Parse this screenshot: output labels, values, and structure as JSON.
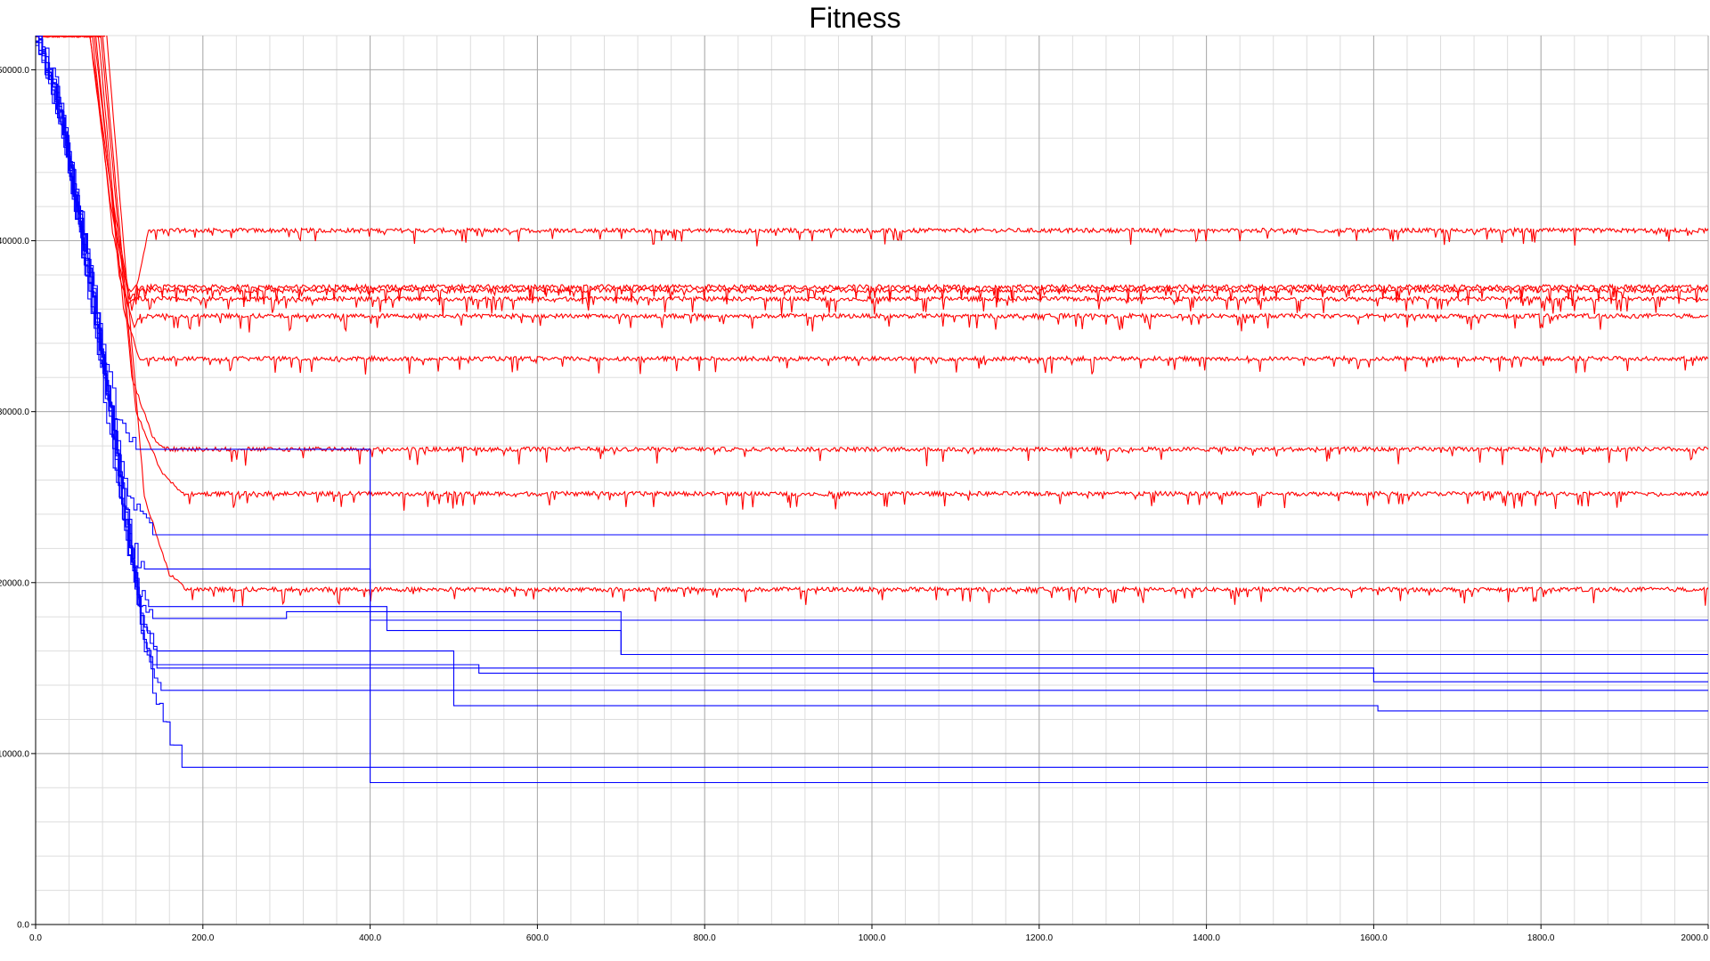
{
  "chart_data": {
    "type": "line",
    "title": "Fitness",
    "xlabel": "",
    "ylabel": "",
    "xlim": [
      0,
      2000
    ],
    "ylim": [
      0,
      52000
    ],
    "x_ticks": [
      "0.0",
      "200.0",
      "400.0",
      "600.0",
      "800.0",
      "1000.0",
      "1200.0",
      "1400.0",
      "1600.0",
      "1800.0",
      "2000.0"
    ],
    "y_ticks": [
      "0.0",
      "10000.0",
      "20000.0",
      "30000.0",
      "40000.0",
      "50000.0"
    ],
    "grid": true,
    "colors": {
      "red": "#ff0000",
      "blue": "#0000ff",
      "grid_major": "#aaaaaa",
      "grid_minor": "#dddddd"
    },
    "series": [
      {
        "color": "red",
        "x": [
          0,
          65,
          90,
          115,
          135,
          2000
        ],
        "y": [
          52000,
          52000,
          43000,
          36000,
          40600,
          40600
        ]
      },
      {
        "color": "red",
        "x": [
          0,
          65,
          90,
          110,
          120,
          2000
        ],
        "y": [
          52000,
          52000,
          42000,
          37000,
          37300,
          37300
        ]
      },
      {
        "color": "red",
        "x": [
          0,
          70,
          95,
          112,
          120,
          2000
        ],
        "y": [
          52000,
          52000,
          41000,
          36500,
          37100,
          37100
        ]
      },
      {
        "color": "red",
        "x": [
          0,
          68,
          92,
          110,
          118,
          2000
        ],
        "y": [
          52000,
          52000,
          40500,
          36300,
          36600,
          36600
        ]
      },
      {
        "color": "red",
        "x": [
          0,
          72,
          100,
          118,
          125,
          2000
        ],
        "y": [
          52000,
          52000,
          38000,
          35000,
          35600,
          35600
        ]
      },
      {
        "color": "red",
        "x": [
          0,
          75,
          105,
          125,
          135,
          2000
        ],
        "y": [
          52000,
          52000,
          36000,
          33000,
          33100,
          33100
        ]
      },
      {
        "color": "red",
        "x": [
          0,
          78,
          115,
          140,
          155,
          2000
        ],
        "y": [
          52000,
          52000,
          32000,
          28500,
          27800,
          27800
        ]
      },
      {
        "color": "red",
        "x": [
          0,
          80,
          120,
          150,
          175,
          2000
        ],
        "y": [
          52000,
          52000,
          30000,
          26500,
          25200,
          25200
        ]
      },
      {
        "color": "red",
        "x": [
          0,
          85,
          130,
          160,
          180,
          2000
        ],
        "y": [
          52000,
          52000,
          25000,
          20500,
          19600,
          19600
        ]
      },
      {
        "color": "blue",
        "x": [
          0,
          20,
          50,
          80,
          100,
          120,
          400,
          400,
          410,
          2000
        ],
        "y": [
          52000,
          50000,
          42000,
          34000,
          29000,
          27800,
          27800,
          8300,
          8300,
          8300
        ]
      },
      {
        "color": "blue",
        "x": [
          0,
          25,
          55,
          85,
          110,
          140,
          2000
        ],
        "y": [
          52000,
          49000,
          40000,
          31000,
          25000,
          22800,
          22800
        ]
      },
      {
        "color": "blue",
        "x": [
          0,
          30,
          60,
          90,
          115,
          130,
          400,
          400,
          2000
        ],
        "y": [
          52000,
          48000,
          39000,
          30000,
          22000,
          20800,
          20800,
          17800,
          17800
        ]
      },
      {
        "color": "blue",
        "x": [
          0,
          20,
          50,
          90,
          120,
          135,
          400,
          420,
          560,
          680,
          700,
          2000
        ],
        "y": [
          52000,
          49500,
          41000,
          30000,
          20000,
          18600,
          18600,
          17200,
          17200,
          17200,
          15800,
          15800
        ]
      },
      {
        "color": "blue",
        "x": [
          0,
          25,
          55,
          85,
          120,
          140,
          250,
          300,
          680,
          690,
          700,
          2000
        ],
        "y": [
          52000,
          48500,
          39500,
          29500,
          19500,
          17900,
          17900,
          18300,
          18300,
          18300,
          15800,
          15800
        ]
      },
      {
        "color": "blue",
        "x": [
          0,
          30,
          60,
          95,
          125,
          145,
          500,
          1600,
          1600,
          2000
        ],
        "y": [
          52000,
          47000,
          38500,
          28000,
          18000,
          15000,
          15000,
          15000,
          14200,
          14200
        ]
      },
      {
        "color": "blue",
        "x": [
          0,
          35,
          70,
          100,
          130,
          140,
          440,
          530,
          2000
        ],
        "y": [
          52000,
          46500,
          37000,
          26000,
          16500,
          15200,
          15200,
          14700,
          14700
        ]
      },
      {
        "color": "blue",
        "x": [
          0,
          30,
          65,
          100,
          130,
          150,
          500,
          1600,
          1600,
          2000
        ],
        "y": [
          52000,
          47000,
          38000,
          25500,
          16000,
          13700,
          13700,
          13700,
          13700,
          13700
        ]
      },
      {
        "color": "blue",
        "x": [
          0,
          25,
          60,
          95,
          130,
          145,
          500,
          500,
          1600,
          1605,
          2000
        ],
        "y": [
          52000,
          48000,
          38500,
          27000,
          17500,
          16000,
          16000,
          12800,
          12800,
          12500,
          12500
        ]
      },
      {
        "color": "blue",
        "x": [
          0,
          40,
          80,
          110,
          140,
          165,
          175,
          2000
        ],
        "y": [
          52000,
          45000,
          33000,
          22000,
          14000,
          10500,
          9200,
          9200
        ]
      }
    ]
  }
}
